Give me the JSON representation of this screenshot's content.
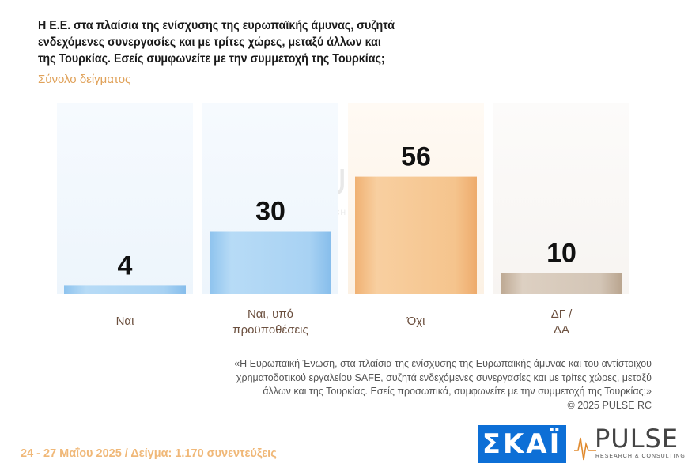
{
  "header": {
    "title_lines": [
      "Η Ε.Ε. στα πλαίσια της ενίσχυσης της ευρωπαϊκής άμυνας, συζητά",
      "ενδεχόμενες συνεργασίες και με τρίτες χώρες, μεταξύ άλλων και",
      "της Τουρκίας. Εσείς συμφωνείτε με την συμμετοχή της Τουρκίας;"
    ],
    "subtitle": "Σύνολο δείγματος"
  },
  "chart_data": {
    "type": "bar",
    "categories": [
      [
        "Ναι"
      ],
      [
        "Ναι, υπό",
        "προϋποθέσεις"
      ],
      [
        "Όχι"
      ],
      [
        "ΔΓ /",
        "ΔΑ"
      ]
    ],
    "values": [
      4,
      30,
      56,
      10
    ],
    "value_labels": [
      "4",
      "30",
      "56",
      "10"
    ],
    "ylim": [
      0,
      100
    ],
    "grid": false,
    "legend": "none",
    "colors": {
      "bar_blue_light": "#a9d2f2",
      "bar_blue": "#8cc4ee",
      "bar_orange": "#f3bd85",
      "bar_tan": "#c6b4a3",
      "panel_blue": "#f1f7fd",
      "panel_orange": "#fdf5ec",
      "panel_neutral": "#faf8f6"
    }
  },
  "note": {
    "lines": [
      "«Η Ευρωπαϊκή Ένωση, στα πλαίσια της ενίσχυσης της Ευρωπαϊκής άμυνας και του αντίστοιχου",
      "χρηματοδοτικού εργαλείου SAFE, συζητά ενδεχόμενες συνεργασίες και με τρίτες χώρες, μεταξύ",
      "άλλων και της Τουρκίας. Εσείς προσωπικά, συμφωνείτε με την συμμετοχή της Τουρκίας;»",
      "©  2025  PULSE RC"
    ]
  },
  "footer": {
    "text": "24 - 27 Μαΐου 2025  /  Δείγμα:  1.170 συνεντεύξεις"
  },
  "logos": {
    "skai": "ΣΚΑΪ",
    "pulse": "PULSE",
    "pulse_sub": "RESEARCH & CONSULTING"
  }
}
